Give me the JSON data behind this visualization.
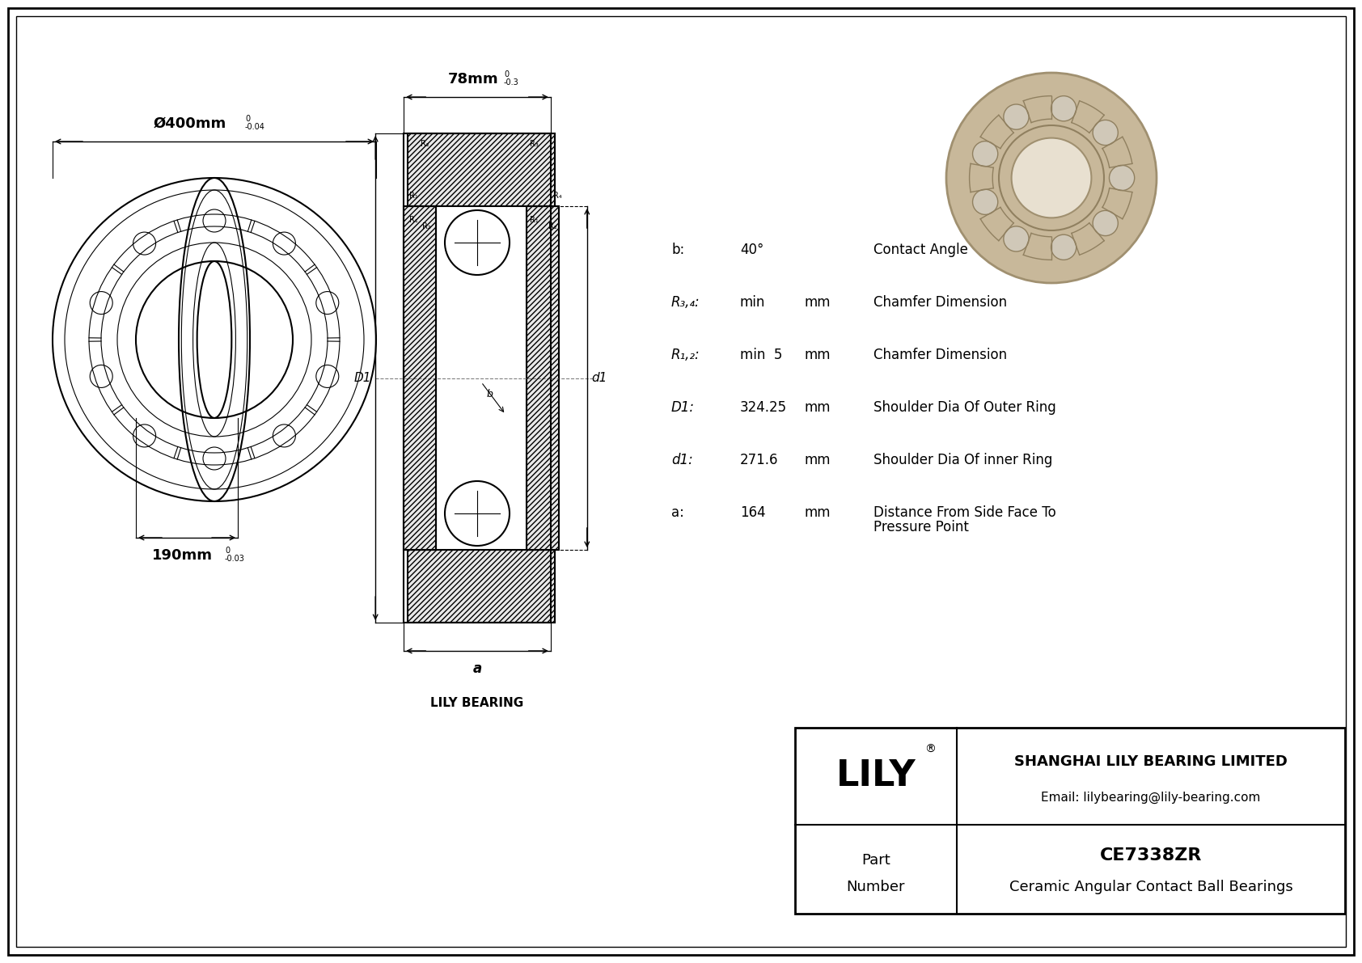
{
  "bg_color": "#ffffff",
  "line_color": "#000000",
  "dim_color": "#000000",
  "hatch_color": "#000000",
  "outer_diameter_label": "Ø400mm",
  "outer_diameter_tol": "-0.04",
  "outer_diameter_tol_upper": "0",
  "inner_diameter_label": "190mm",
  "inner_diameter_tol": "-0.03",
  "inner_diameter_tol_upper": "0",
  "width_label": "78mm",
  "width_tol": "-0.3",
  "width_tol_upper": "0",
  "specs": [
    [
      "b:",
      "40°",
      "",
      "Contact Angle"
    ],
    [
      "R₃,₄:",
      "min",
      "mm",
      "Chamfer Dimension"
    ],
    [
      "R₁,₂:",
      "min  5",
      "mm",
      "Chamfer Dimension"
    ],
    [
      "D1:",
      "324.25",
      "mm",
      "Shoulder Dia Of Outer Ring"
    ],
    [
      "d1:",
      "271.6",
      "mm",
      "Shoulder Dia Of inner Ring"
    ],
    [
      "a:",
      "164",
      "mm",
      "Distance From Side Face To\nPressure Point"
    ]
  ],
  "company_name": "SHANGHAI LILY BEARING LIMITED",
  "company_email": "Email: lilybearing@lily-bearing.com",
  "brand": "LILY",
  "part_number": "CE7338ZR",
  "part_type": "Ceramic Angular Contact Ball Bearings",
  "lily_bearing_label": "LILY BEARING",
  "dimension_a_label": "a",
  "label_D1": "D1",
  "label_d1": "d1"
}
